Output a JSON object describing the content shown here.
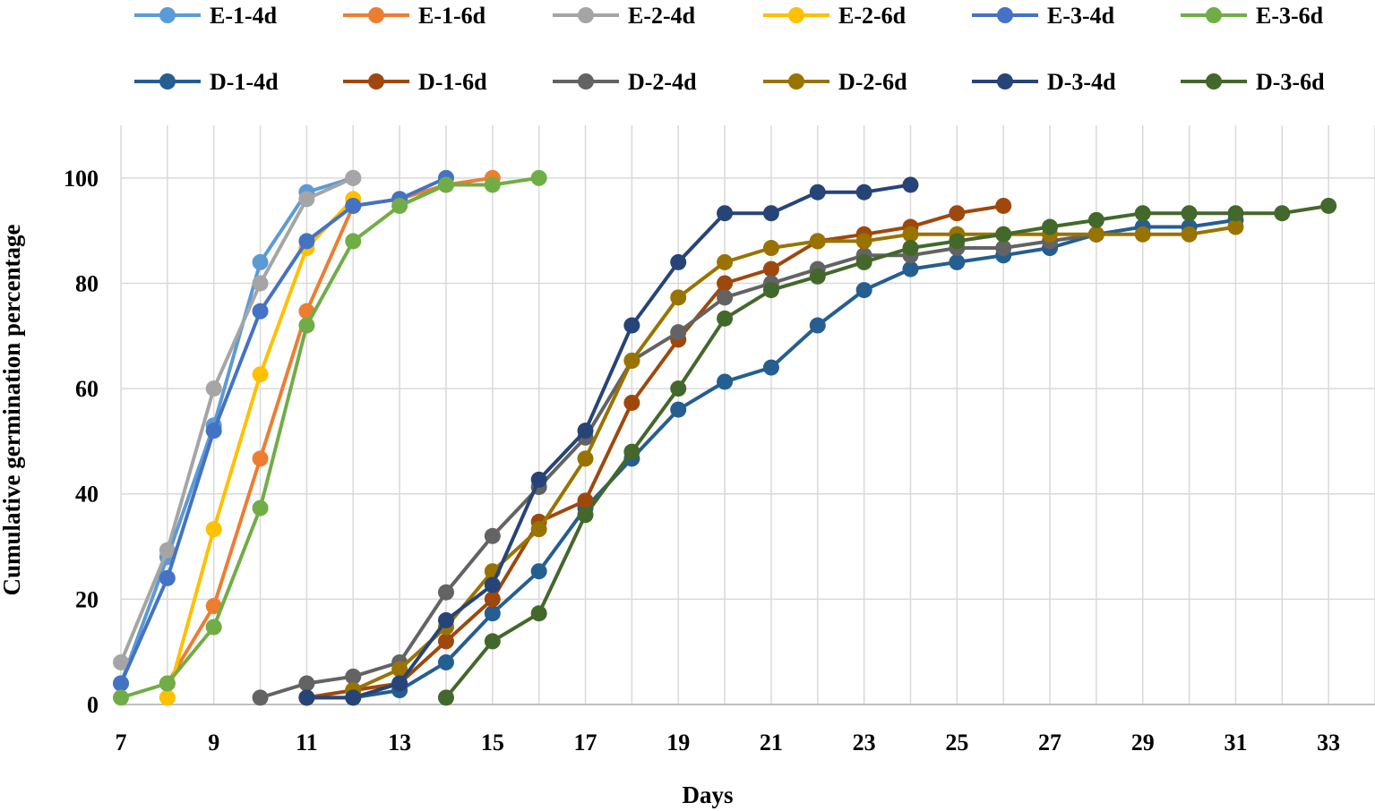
{
  "chart_data": {
    "type": "line",
    "title": "",
    "xlabel": "Days",
    "ylabel": "Cumulative germination percentage",
    "xlim": [
      7,
      34
    ],
    "ylim": [
      0,
      110
    ],
    "xticks": [
      "7",
      "9",
      "11",
      "13",
      "15",
      "17",
      "19",
      "21",
      "23",
      "25",
      "27",
      "29",
      "31",
      "33"
    ],
    "yticks": [
      "0",
      "20",
      "40",
      "60",
      "80",
      "100"
    ],
    "grid": true,
    "legend_position": "top",
    "series": [
      {
        "name": "E-1-4d",
        "color": "#5B9BD5",
        "points": [
          [
            7,
            4
          ],
          [
            8,
            28
          ],
          [
            9,
            53
          ],
          [
            10,
            84
          ],
          [
            11,
            97.3
          ],
          [
            12,
            100
          ]
        ]
      },
      {
        "name": "E-1-6d",
        "color": "#ED7D31",
        "points": [
          [
            8,
            4
          ],
          [
            9,
            18.7
          ],
          [
            10,
            46.7
          ],
          [
            11,
            74.7
          ],
          [
            12,
            94.7
          ],
          [
            13,
            96
          ],
          [
            14,
            98.7
          ],
          [
            15,
            100
          ]
        ]
      },
      {
        "name": "E-2-4d",
        "color": "#A5A5A5",
        "points": [
          [
            7,
            8
          ],
          [
            8,
            29.3
          ],
          [
            9,
            60
          ],
          [
            10,
            80
          ],
          [
            11,
            96
          ],
          [
            12,
            100
          ]
        ]
      },
      {
        "name": "E-2-6d",
        "color": "#FFC000",
        "points": [
          [
            8,
            1.3
          ],
          [
            9,
            33.3
          ],
          [
            10,
            62.7
          ],
          [
            11,
            86.7
          ],
          [
            12,
            96
          ]
        ]
      },
      {
        "name": "E-3-4d",
        "color": "#4472C4",
        "points": [
          [
            7,
            4
          ],
          [
            8,
            24
          ],
          [
            9,
            52
          ],
          [
            10,
            74.7
          ],
          [
            11,
            88
          ],
          [
            12,
            94.7
          ],
          [
            13,
            96
          ],
          [
            14,
            100
          ]
        ]
      },
      {
        "name": "E-3-6d",
        "color": "#70AD47",
        "points": [
          [
            7,
            1.3
          ],
          [
            8,
            4
          ],
          [
            9,
            14.7
          ],
          [
            10,
            37.3
          ],
          [
            11,
            72
          ],
          [
            12,
            88
          ],
          [
            13,
            94.7
          ],
          [
            14,
            98.7
          ],
          [
            15,
            98.7
          ],
          [
            16,
            100
          ]
        ]
      },
      {
        "name": "D-1-4d",
        "color": "#255E91",
        "points": [
          [
            11,
            1.3
          ],
          [
            12,
            1.3
          ],
          [
            13,
            2.7
          ],
          [
            14,
            8
          ],
          [
            15,
            17.3
          ],
          [
            16,
            25.3
          ],
          [
            17,
            37.3
          ],
          [
            18,
            46.7
          ],
          [
            19,
            56
          ],
          [
            20,
            61.3
          ],
          [
            21,
            64
          ],
          [
            22,
            72
          ],
          [
            23,
            78.7
          ],
          [
            24,
            82.7
          ],
          [
            25,
            84
          ],
          [
            26,
            85.3
          ],
          [
            27,
            86.7
          ],
          [
            28,
            89.3
          ],
          [
            29,
            90.7
          ],
          [
            30,
            90.7
          ],
          [
            31,
            92
          ]
        ]
      },
      {
        "name": "D-1-6d",
        "color": "#9E480E",
        "points": [
          [
            11,
            1.3
          ],
          [
            12,
            2.7
          ],
          [
            13,
            4
          ],
          [
            14,
            12
          ],
          [
            15,
            20
          ],
          [
            16,
            34.7
          ],
          [
            17,
            38.7
          ],
          [
            18,
            57.3
          ],
          [
            19,
            69.3
          ],
          [
            20,
            80
          ],
          [
            21,
            82.7
          ],
          [
            22,
            88
          ],
          [
            23,
            89.3
          ],
          [
            24,
            90.7
          ],
          [
            25,
            93.3
          ],
          [
            26,
            94.7
          ]
        ]
      },
      {
        "name": "D-2-4d",
        "color": "#636363",
        "points": [
          [
            10,
            1.3
          ],
          [
            11,
            4
          ],
          [
            12,
            5.3
          ],
          [
            13,
            8
          ],
          [
            14,
            21.3
          ],
          [
            15,
            32
          ],
          [
            16,
            41.3
          ],
          [
            17,
            50.7
          ],
          [
            18,
            65.3
          ],
          [
            19,
            70.7
          ],
          [
            20,
            77.3
          ],
          [
            21,
            80
          ],
          [
            22,
            82.7
          ],
          [
            23,
            85.3
          ],
          [
            24,
            85.3
          ],
          [
            25,
            86.7
          ],
          [
            26,
            86.7
          ],
          [
            27,
            88
          ],
          [
            28,
            89.3
          ]
        ]
      },
      {
        "name": "D-2-6d",
        "color": "#997300",
        "points": [
          [
            12,
            2.7
          ],
          [
            13,
            6.7
          ],
          [
            14,
            14.7
          ],
          [
            15,
            25.3
          ],
          [
            16,
            33.3
          ],
          [
            17,
            46.7
          ],
          [
            18,
            65.3
          ],
          [
            19,
            77.3
          ],
          [
            20,
            84
          ],
          [
            21,
            86.7
          ],
          [
            22,
            88
          ],
          [
            23,
            88
          ],
          [
            24,
            89.3
          ],
          [
            25,
            89.3
          ],
          [
            26,
            89.3
          ],
          [
            27,
            89.3
          ],
          [
            28,
            89.3
          ],
          [
            29,
            89.3
          ],
          [
            30,
            89.3
          ],
          [
            31,
            90.7
          ]
        ]
      },
      {
        "name": "D-3-4d",
        "color": "#264478",
        "points": [
          [
            11,
            1.3
          ],
          [
            12,
            1.3
          ],
          [
            13,
            4
          ],
          [
            14,
            16
          ],
          [
            15,
            22.7
          ],
          [
            16,
            42.7
          ],
          [
            17,
            52
          ],
          [
            18,
            72
          ],
          [
            19,
            84
          ],
          [
            20,
            93.3
          ],
          [
            21,
            93.3
          ],
          [
            22,
            97.3
          ],
          [
            23,
            97.3
          ],
          [
            24,
            98.7
          ]
        ]
      },
      {
        "name": "D-3-6d",
        "color": "#43682B",
        "points": [
          [
            14,
            1.3
          ],
          [
            15,
            12
          ],
          [
            16,
            17.3
          ],
          [
            17,
            36
          ],
          [
            18,
            48
          ],
          [
            19,
            60
          ],
          [
            20,
            73.3
          ],
          [
            21,
            78.7
          ],
          [
            22,
            81.3
          ],
          [
            23,
            84
          ],
          [
            24,
            86.7
          ],
          [
            25,
            88
          ],
          [
            26,
            89.3
          ],
          [
            27,
            90.7
          ],
          [
            28,
            92
          ],
          [
            29,
            93.3
          ],
          [
            30,
            93.3
          ],
          [
            31,
            93.3
          ],
          [
            32,
            93.3
          ],
          [
            33,
            94.7
          ]
        ]
      }
    ]
  }
}
